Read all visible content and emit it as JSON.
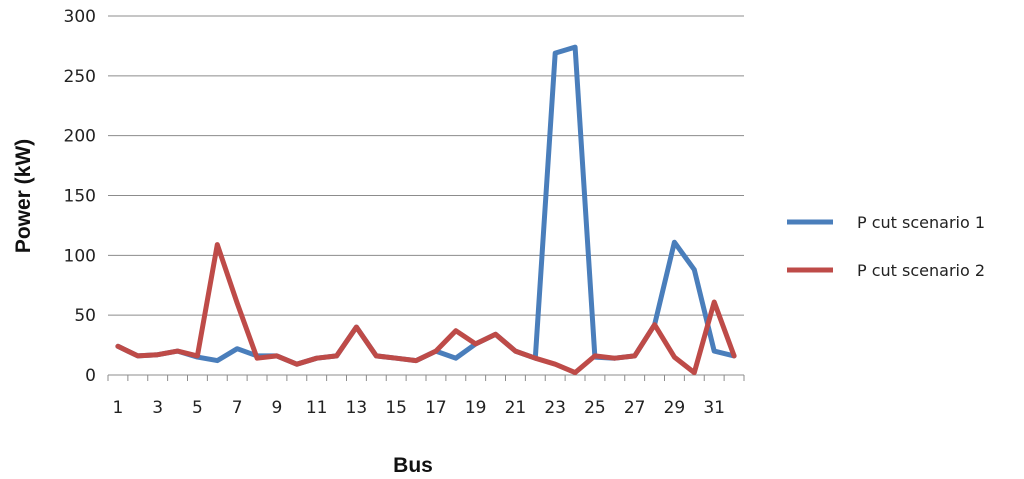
{
  "chart_data": {
    "type": "line",
    "xlabel": "Bus",
    "ylabel": "Power (kW)",
    "ylim": [
      0,
      300
    ],
    "yticks": [
      0,
      50,
      100,
      150,
      200,
      250,
      300
    ],
    "x": [
      1,
      2,
      3,
      4,
      5,
      6,
      7,
      8,
      9,
      10,
      11,
      12,
      13,
      14,
      15,
      16,
      17,
      18,
      19,
      20,
      21,
      22,
      23,
      24,
      25,
      26,
      27,
      28,
      29,
      30,
      31,
      32
    ],
    "xtick_labels": [
      "1",
      "3",
      "5",
      "7",
      "9",
      "11",
      "13",
      "15",
      "17",
      "19",
      "21",
      "23",
      "25",
      "27",
      "29",
      "31"
    ],
    "grid": "horizontal",
    "legend_position": "right",
    "series": [
      {
        "name": "P cut scenario 1",
        "color": "#4a7ebb",
        "values": [
          24,
          16,
          17,
          20,
          15,
          12,
          22,
          16,
          16,
          9,
          14,
          16,
          40,
          16,
          14,
          12,
          20,
          14,
          26,
          34,
          20,
          14,
          269,
          274,
          15,
          14,
          16,
          42,
          111,
          88,
          20,
          16
        ]
      },
      {
        "name": "P cut scenario 2",
        "color": "#be4b48",
        "values": [
          24,
          16,
          17,
          20,
          16,
          109,
          60,
          14,
          16,
          9,
          14,
          16,
          40,
          16,
          14,
          12,
          20,
          37,
          26,
          34,
          20,
          14,
          9,
          2,
          16,
          14,
          16,
          42,
          15,
          2,
          61,
          16
        ]
      }
    ]
  }
}
